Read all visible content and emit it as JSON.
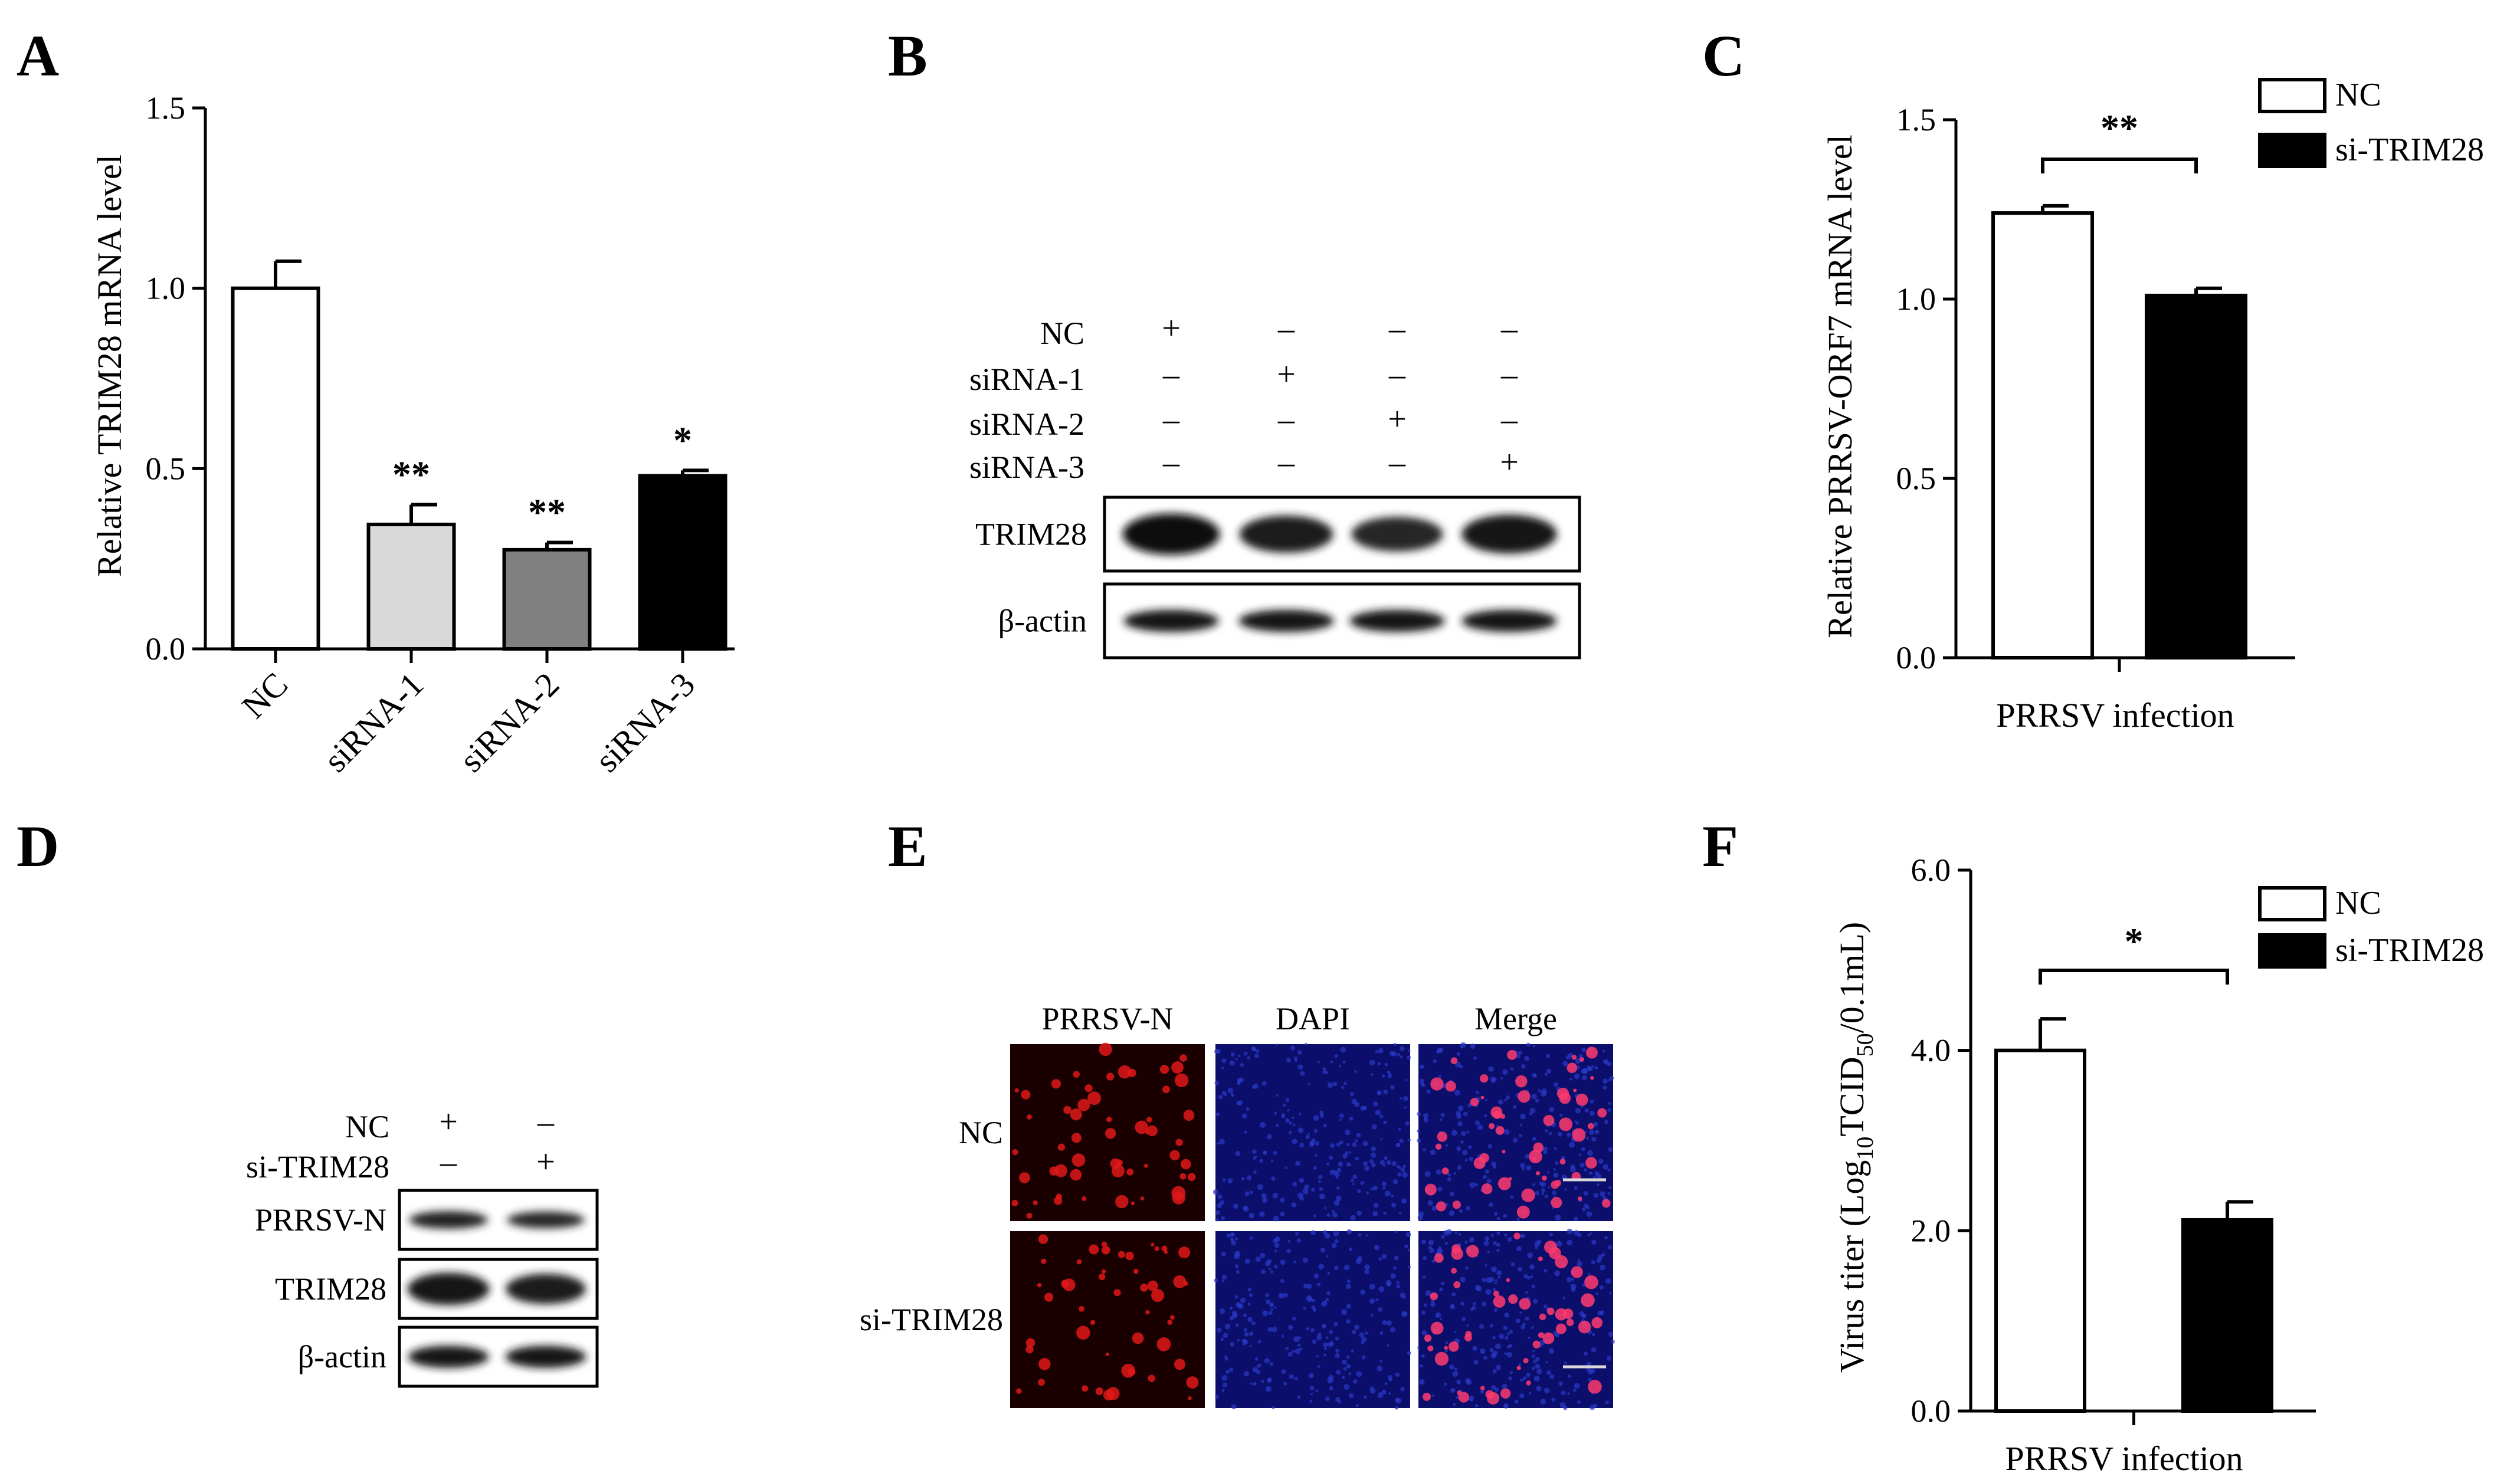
{
  "panels": {
    "A": {
      "letter": "A",
      "chart_data": {
        "type": "bar",
        "categories": [
          "NC",
          "siRNA-1",
          "siRNA-2",
          "siRNA-3"
        ],
        "values": [
          1.0,
          0.345,
          0.275,
          0.48
        ],
        "errors": [
          0.075,
          0.055,
          0.02,
          0.015
        ],
        "significance": [
          "",
          "**",
          "**",
          "*"
        ],
        "fills": [
          "#ffffff",
          "#d9d9d9",
          "#808080",
          "#000000"
        ],
        "ylabel": "Relative TRIM28 mRNA level",
        "ylim": [
          0,
          1.5
        ],
        "yticks": [
          "0.0",
          "0.5",
          "1.0",
          "1.5"
        ]
      }
    },
    "B": {
      "letter": "B",
      "conditions": [
        {
          "label": "NC",
          "signs": [
            "+",
            "–",
            "–",
            "–"
          ]
        },
        {
          "label": "siRNA-1",
          "signs": [
            "–",
            "+",
            "–",
            "–"
          ]
        },
        {
          "label": "siRNA-2",
          "signs": [
            "–",
            "–",
            "+",
            "–"
          ]
        },
        {
          "label": "siRNA-3",
          "signs": [
            "–",
            "–",
            "–",
            "+"
          ]
        }
      ],
      "blots": [
        {
          "label": "TRIM28",
          "intensities": [
            1.0,
            0.75,
            0.6,
            0.85
          ]
        },
        {
          "label": "β-actin",
          "intensities": [
            0.85,
            0.85,
            0.85,
            0.85
          ]
        }
      ]
    },
    "C": {
      "letter": "C",
      "chart_data": {
        "type": "bar",
        "categories": [
          "PRRSV infection"
        ],
        "series": [
          {
            "name": "NC",
            "values": [
              1.24
            ],
            "errors": [
              0.02
            ]
          },
          {
            "name": "si-TRIM28",
            "values": [
              1.01
            ],
            "errors": [
              0.02
            ]
          }
        ],
        "significance": "**",
        "ylabel": "Relative PRRSV-ORF7 mRNA level",
        "ylim": [
          0,
          1.5
        ],
        "yticks": [
          "0.0",
          "0.5",
          "1.0",
          "1.5"
        ],
        "legend_position": "top-right"
      }
    },
    "D": {
      "letter": "D",
      "conditions": [
        {
          "label": "NC",
          "signs": [
            "+",
            "–"
          ]
        },
        {
          "label": "si-TRIM28",
          "signs": [
            "–",
            "+"
          ]
        }
      ],
      "blots": [
        {
          "label": "PRRSV-N",
          "intensities": [
            0.7,
            0.6
          ]
        },
        {
          "label": "TRIM28",
          "intensities": [
            0.95,
            0.8
          ]
        },
        {
          "label": "β-actin",
          "intensities": [
            0.85,
            0.85
          ]
        }
      ]
    },
    "E": {
      "letter": "E",
      "columns": [
        "PRRSV-N",
        "DAPI",
        "Merge"
      ],
      "rows": [
        "NC",
        "si-TRIM28"
      ]
    },
    "F": {
      "letter": "F",
      "chart_data": {
        "type": "bar",
        "categories": [
          "PRRSV infection"
        ],
        "series": [
          {
            "name": "NC",
            "values": [
              4.0
            ],
            "errors": [
              0.35
            ]
          },
          {
            "name": "si-TRIM28",
            "values": [
              2.12
            ],
            "errors": [
              0.2
            ]
          }
        ],
        "significance": "*",
        "ylabel_prefix": "Virus titer (Log",
        "ylabel_sub1": "10",
        "ylabel_mid": "TCID",
        "ylabel_sub2": "50",
        "ylabel_suffix": "/0.1mL)",
        "ylim": [
          0,
          6
        ],
        "yticks": [
          "0.0",
          "2.0",
          "4.0",
          "6.0"
        ],
        "legend_position": "top-right"
      }
    }
  }
}
